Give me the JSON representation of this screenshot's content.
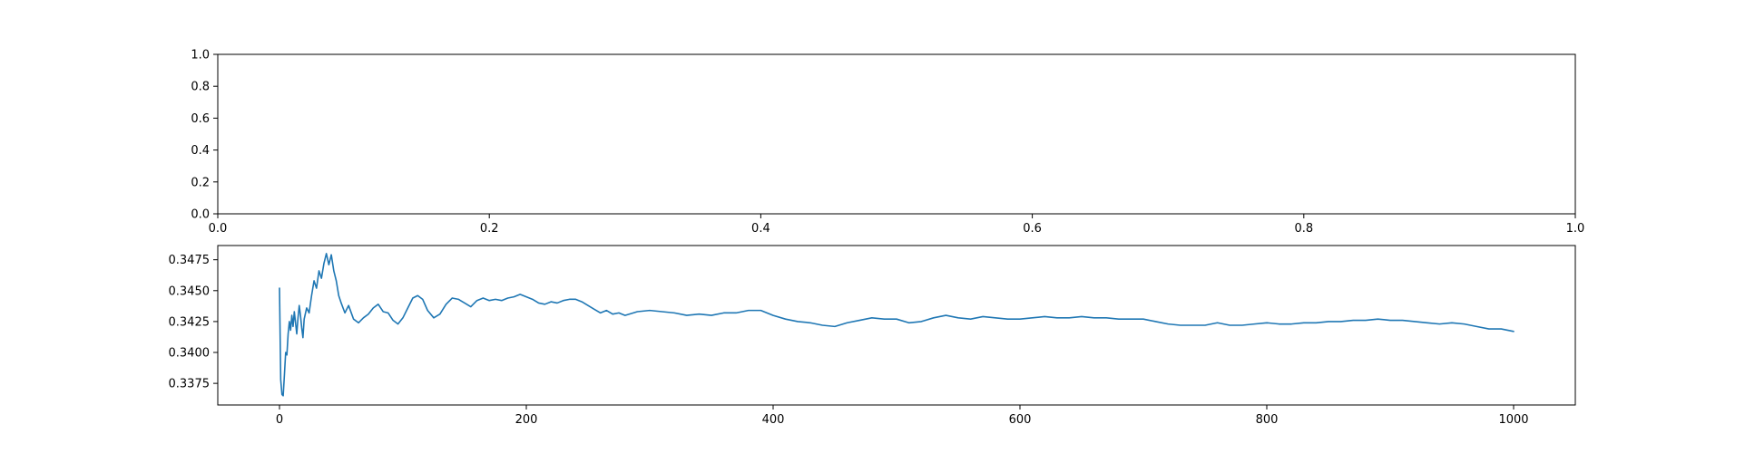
{
  "chart_data": [
    {
      "type": "line",
      "title": "",
      "xlabel": "",
      "ylabel": "",
      "xlim": [
        0.0,
        1.0
      ],
      "ylim": [
        0.0,
        1.0
      ],
      "xticks": [
        "0.0",
        "0.2",
        "0.4",
        "0.6",
        "0.8",
        "1.0"
      ],
      "yticks": [
        "0.0",
        "0.2",
        "0.4",
        "0.6",
        "0.8",
        "1.0"
      ],
      "grid": false,
      "series": []
    },
    {
      "type": "line",
      "title": "",
      "xlabel": "",
      "ylabel": "",
      "xlim": [
        -50,
        1050
      ],
      "ylim": [
        0.33575,
        0.34865
      ],
      "xticks": [
        "0",
        "200",
        "400",
        "600",
        "800",
        "1000"
      ],
      "yticks": [
        "0.3375",
        "0.3400",
        "0.3425",
        "0.3450",
        "0.3475"
      ],
      "grid": false,
      "color": "#1f77b4",
      "series": [
        {
          "x": [
            0,
            1,
            2,
            3,
            4,
            5,
            6,
            7,
            8,
            9,
            10,
            11,
            12,
            13,
            14,
            15,
            16,
            17,
            18,
            19,
            20,
            22,
            24,
            26,
            28,
            30,
            32,
            34,
            36,
            38,
            40,
            42,
            44,
            46,
            48,
            50,
            53,
            56,
            60,
            64,
            68,
            72,
            76,
            80,
            84,
            88,
            92,
            96,
            100,
            104,
            108,
            112,
            116,
            120,
            125,
            130,
            135,
            140,
            145,
            150,
            155,
            160,
            165,
            170,
            175,
            180,
            185,
            190,
            195,
            200,
            205,
            210,
            215,
            220,
            225,
            230,
            235,
            240,
            245,
            250,
            255,
            260,
            265,
            270,
            275,
            280,
            290,
            300,
            310,
            320,
            330,
            340,
            350,
            360,
            370,
            380,
            390,
            400,
            410,
            420,
            430,
            440,
            450,
            460,
            470,
            480,
            490,
            500,
            510,
            520,
            530,
            540,
            550,
            560,
            570,
            580,
            590,
            600,
            610,
            620,
            630,
            640,
            650,
            660,
            670,
            680,
            690,
            700,
            710,
            720,
            730,
            740,
            750,
            760,
            770,
            780,
            790,
            800,
            810,
            820,
            830,
            840,
            850,
            860,
            870,
            880,
            890,
            900,
            910,
            920,
            930,
            940,
            950,
            960,
            970,
            980,
            990,
            1000
          ],
          "y": [
            0.3452,
            0.3378,
            0.3366,
            0.3365,
            0.3382,
            0.34,
            0.3398,
            0.3415,
            0.3425,
            0.3418,
            0.343,
            0.3421,
            0.3433,
            0.3424,
            0.3415,
            0.3428,
            0.3438,
            0.343,
            0.342,
            0.3412,
            0.3427,
            0.3436,
            0.3432,
            0.3446,
            0.3458,
            0.3452,
            0.3466,
            0.346,
            0.3472,
            0.348,
            0.3471,
            0.3479,
            0.3466,
            0.3458,
            0.3446,
            0.344,
            0.3432,
            0.3438,
            0.3427,
            0.3424,
            0.3428,
            0.3431,
            0.3436,
            0.3439,
            0.3433,
            0.3432,
            0.3426,
            0.3423,
            0.3428,
            0.3436,
            0.3444,
            0.3446,
            0.3443,
            0.3434,
            0.3428,
            0.3431,
            0.3439,
            0.3444,
            0.3443,
            0.344,
            0.3437,
            0.3442,
            0.3444,
            0.3442,
            0.3443,
            0.3442,
            0.3444,
            0.3445,
            0.3447,
            0.3445,
            0.3443,
            0.344,
            0.3439,
            0.3441,
            0.344,
            0.3442,
            0.3443,
            0.3443,
            0.3441,
            0.3438,
            0.3435,
            0.3432,
            0.3434,
            0.3431,
            0.3432,
            0.343,
            0.3433,
            0.3434,
            0.3433,
            0.3432,
            0.343,
            0.3431,
            0.343,
            0.3432,
            0.3432,
            0.3434,
            0.3434,
            0.343,
            0.3427,
            0.3425,
            0.3424,
            0.3422,
            0.3421,
            0.3424,
            0.3426,
            0.3428,
            0.3427,
            0.3427,
            0.3424,
            0.3425,
            0.3428,
            0.343,
            0.3428,
            0.3427,
            0.3429,
            0.3428,
            0.3427,
            0.3427,
            0.3428,
            0.3429,
            0.3428,
            0.3428,
            0.3429,
            0.3428,
            0.3428,
            0.3427,
            0.3427,
            0.3427,
            0.3425,
            0.3423,
            0.3422,
            0.3422,
            0.3422,
            0.3424,
            0.3422,
            0.3422,
            0.3423,
            0.3424,
            0.3423,
            0.3423,
            0.3424,
            0.3424,
            0.3425,
            0.3425,
            0.3426,
            0.3426,
            0.3427,
            0.3426,
            0.3426,
            0.3425,
            0.3424,
            0.3423,
            0.3424,
            0.3423,
            0.3421,
            0.3419,
            0.3419,
            0.3417
          ]
        }
      ]
    }
  ]
}
